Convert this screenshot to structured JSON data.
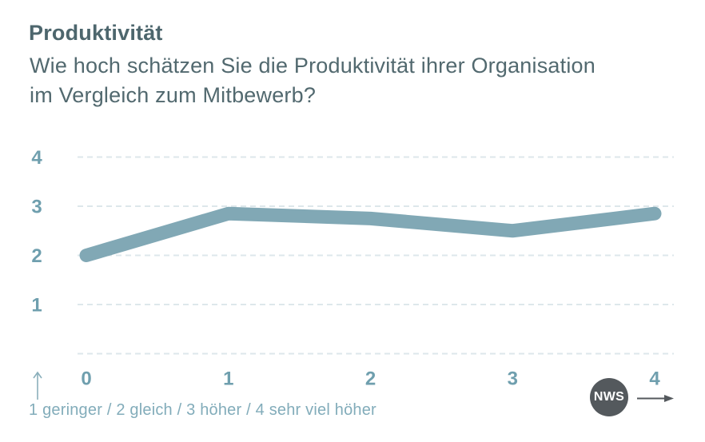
{
  "header": {
    "title": "Produktivität",
    "subtitle_lines": [
      "Wie hoch schätzen Sie die Produktivität ihrer Organisation",
      "im Vergleich zum Mitbewerb?"
    ]
  },
  "chart_data": {
    "type": "line",
    "title": "Produktivität",
    "x": [
      0,
      1,
      2,
      3,
      4
    ],
    "xticks": [
      "0",
      "1",
      "2",
      "3",
      "4"
    ],
    "yticks": [
      4,
      3,
      2,
      1
    ],
    "ylim": [
      0,
      4.75
    ],
    "series": [
      {
        "name": "Produktivität",
        "values": [
          2.0,
          2.85,
          2.75,
          2.5,
          2.85
        ]
      }
    ],
    "grid": "horizontal-dashed",
    "legend_position": "none",
    "colors": {
      "line": "#81a8b5",
      "axis_labels": "#6f9fae",
      "gridline": "#dde7eb"
    }
  },
  "footer": {
    "scale_note": "1 geringer / 2 gleich / 3 höher / 4 sehr viel höher",
    "logo_text": "NWS"
  },
  "colors": {
    "title_text": "#4d666d",
    "legend_text": "#82acba",
    "scale_arrow": "#8aafbb",
    "logo_bg": "#54595d",
    "logo_arrow": "#54595d",
    "background": "#ffffff"
  }
}
